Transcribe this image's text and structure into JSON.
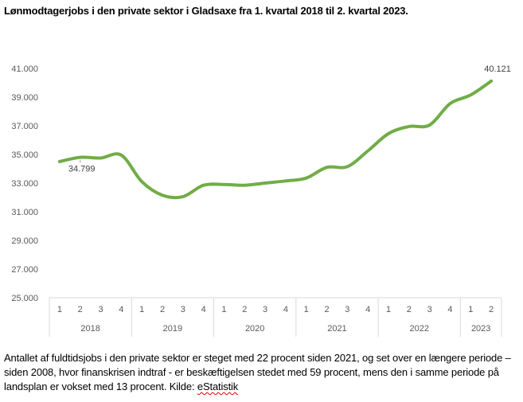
{
  "chart_data": {
    "type": "line",
    "title": "Lønmodtagerjobs i den private sektor i Gladsaxe fra 1. kvartal 2018 til 2. kvartal 2023.",
    "xlabel": "",
    "ylabel": "",
    "ylim": [
      25000,
      41000
    ],
    "yticks": [
      "25.000",
      "27.000",
      "29.000",
      "31.000",
      "33.000",
      "35.000",
      "37.000",
      "39.000",
      "41.000"
    ],
    "ytick_values": [
      25000,
      27000,
      29000,
      31000,
      33000,
      35000,
      37000,
      39000,
      41000
    ],
    "grid": false,
    "legend": "none",
    "line_color": "#70AD47",
    "groups": [
      {
        "year": "2018",
        "quarters": [
          "1",
          "2",
          "3",
          "4"
        ]
      },
      {
        "year": "2019",
        "quarters": [
          "1",
          "2",
          "3",
          "4"
        ]
      },
      {
        "year": "2020",
        "quarters": [
          "1",
          "2",
          "3",
          "4"
        ]
      },
      {
        "year": "2021",
        "quarters": [
          "1",
          "2",
          "3",
          "4"
        ]
      },
      {
        "year": "2022",
        "quarters": [
          "1",
          "2",
          "3",
          "4"
        ]
      },
      {
        "year": "2023",
        "quarters": [
          "1",
          "2"
        ]
      }
    ],
    "series": [
      {
        "name": "Lønmodtagerjobs",
        "values": [
          34500,
          34799,
          34750,
          34950,
          33100,
          32150,
          32050,
          32850,
          32900,
          32850,
          33000,
          33150,
          33350,
          34100,
          34150,
          35250,
          36450,
          36950,
          37050,
          38550,
          39150,
          40121
        ]
      }
    ],
    "annotations": [
      {
        "index": 1,
        "text": "34.799",
        "position": "below"
      },
      {
        "index": 21,
        "text": "40.121",
        "position": "above"
      }
    ]
  },
  "caption": {
    "text": "Antallet af fuldtidsjobs i den private sektor er steget med 22 procent siden 2021, og set over en længere periode – siden 2008, hvor finanskrisen indtraf - er beskæftigelsen stedet med 59 procent, mens den i samme periode på landsplan er vokset med 13 procent. Kilde: ",
    "source_link": "eStatistik"
  }
}
